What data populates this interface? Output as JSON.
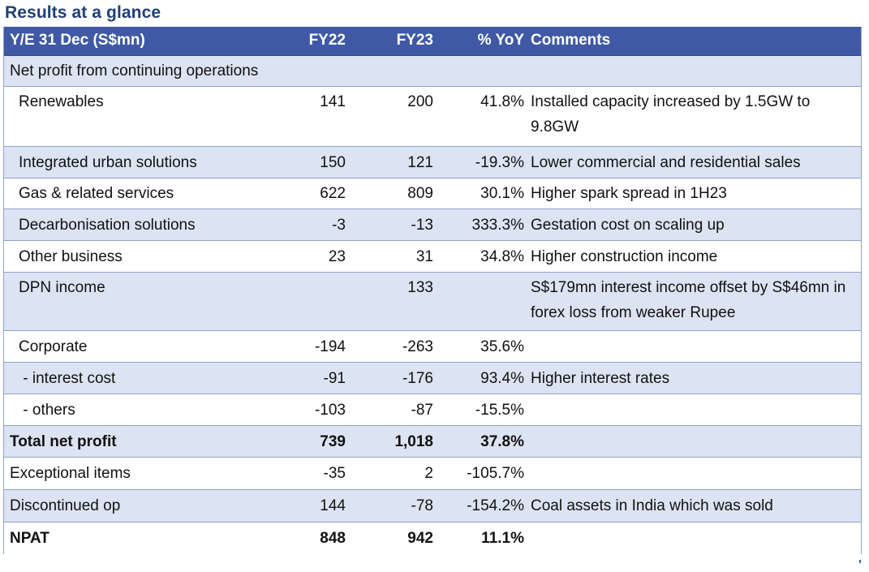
{
  "title": "Results at a glance",
  "header": {
    "label": "Y/E 31 Dec (S$mn)",
    "fy22": "FY22",
    "fy23": "FY23",
    "yoy": "% YoY",
    "comments": "Comments"
  },
  "rows": [
    {
      "label": "Net profit from continuing operations",
      "fy22": "",
      "fy23": "",
      "yoy": "",
      "comment": ""
    },
    {
      "label": "Renewables",
      "fy22": "141",
      "fy23": "200",
      "yoy": "41.8%",
      "comment": "Installed capacity increased by 1.5GW to 9.8GW"
    },
    {
      "label": "Integrated urban solutions",
      "fy22": "150",
      "fy23": "121",
      "yoy": "-19.3%",
      "comment": "Lower commercial and residential sales"
    },
    {
      "label": "Gas & related services",
      "fy22": "622",
      "fy23": "809",
      "yoy": "30.1%",
      "comment": "Higher spark spread in 1H23"
    },
    {
      "label": "Decarbonisation solutions",
      "fy22": "-3",
      "fy23": "-13",
      "yoy": "333.3%",
      "comment": "Gestation cost on scaling up"
    },
    {
      "label": "Other business",
      "fy22": "23",
      "fy23": "31",
      "yoy": "34.8%",
      "comment": "Higher construction income"
    },
    {
      "label": "DPN income",
      "fy22": "",
      "fy23": "133",
      "yoy": "",
      "comment": "S$179mn interest income offset by S$46mn in forex loss from weaker Rupee"
    },
    {
      "label": "Corporate",
      "fy22": "-194",
      "fy23": "-263",
      "yoy": "35.6%",
      "comment": ""
    },
    {
      "label": " - interest cost",
      "fy22": "-91",
      "fy23": "-176",
      "yoy": "93.4%",
      "comment": "Higher interest rates"
    },
    {
      "label": " - others",
      "fy22": "-103",
      "fy23": "-87",
      "yoy": "-15.5%",
      "comment": ""
    },
    {
      "label": "Total net profit",
      "fy22": "739",
      "fy23": "1,018",
      "yoy": "37.8%",
      "comment": ""
    },
    {
      "label": "Exceptional items",
      "fy22": "-35",
      "fy23": "2",
      "yoy": "-105.7%",
      "comment": ""
    },
    {
      "label": "Discontinued op",
      "fy22": "144",
      "fy23": "-78",
      "yoy": "-154.2%",
      "comment": "Coal assets in India which was sold"
    },
    {
      "label": "NPAT",
      "fy22": "848",
      "fy23": "942",
      "yoy": "11.1%",
      "comment": ""
    }
  ],
  "colors": {
    "title": "#1f3f78",
    "header_bg": "#3f59a5",
    "row_shade": "#dce3f2",
    "grid": "#8fa3c7"
  }
}
